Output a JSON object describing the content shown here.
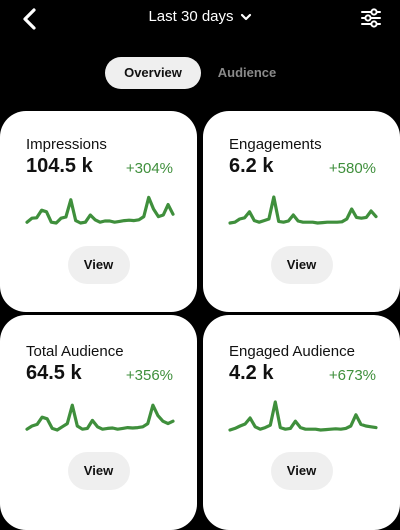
{
  "header": {
    "back_icon": "chevron-left-icon",
    "date_range": "Last 30 days",
    "dropdown_icon": "chevron-down-icon",
    "filter_icon": "sliders-icon"
  },
  "tabs": [
    {
      "label": "Overview",
      "selected": true
    },
    {
      "label": "Audience",
      "selected": false
    }
  ],
  "colors": {
    "accent_green": "#3f8f3c",
    "background": "#000000",
    "card": "#ffffff",
    "button": "#efefef"
  },
  "cards": [
    {
      "title": "Impressions",
      "value": "104.5 k",
      "change": "+304%",
      "view_label": "View",
      "trend": [
        0.22,
        0.32,
        0.33,
        0.52,
        0.48,
        0.22,
        0.2,
        0.32,
        0.35,
        0.78,
        0.26,
        0.2,
        0.22,
        0.4,
        0.28,
        0.22,
        0.25,
        0.25,
        0.22,
        0.24,
        0.26,
        0.27,
        0.26,
        0.28,
        0.36,
        0.84,
        0.55,
        0.36,
        0.4,
        0.66,
        0.42
      ]
    },
    {
      "title": "Engagements",
      "value": "6.2 k",
      "change": "+580%",
      "view_label": "View",
      "trend": [
        0.2,
        0.22,
        0.3,
        0.33,
        0.48,
        0.26,
        0.22,
        0.26,
        0.3,
        0.85,
        0.24,
        0.22,
        0.25,
        0.4,
        0.25,
        0.22,
        0.22,
        0.22,
        0.2,
        0.21,
        0.22,
        0.22,
        0.22,
        0.23,
        0.3,
        0.55,
        0.34,
        0.32,
        0.34,
        0.5,
        0.36
      ]
    },
    {
      "title": "Total Audience",
      "value": "64.5 k",
      "change": "+356%",
      "view_label": "View",
      "trend": [
        0.22,
        0.3,
        0.34,
        0.52,
        0.48,
        0.24,
        0.2,
        0.28,
        0.36,
        0.82,
        0.3,
        0.22,
        0.24,
        0.44,
        0.28,
        0.22,
        0.24,
        0.25,
        0.22,
        0.24,
        0.26,
        0.25,
        0.26,
        0.28,
        0.36,
        0.82,
        0.56,
        0.42,
        0.36,
        0.42
      ]
    },
    {
      "title": "Engaged Audience",
      "value": "4.2 k",
      "change": "+673%",
      "view_label": "View",
      "trend": [
        0.2,
        0.24,
        0.3,
        0.35,
        0.5,
        0.28,
        0.22,
        0.26,
        0.32,
        0.9,
        0.26,
        0.22,
        0.24,
        0.42,
        0.26,
        0.22,
        0.22,
        0.22,
        0.2,
        0.21,
        0.22,
        0.23,
        0.22,
        0.24,
        0.3,
        0.58,
        0.34,
        0.3,
        0.28,
        0.26
      ]
    }
  ]
}
